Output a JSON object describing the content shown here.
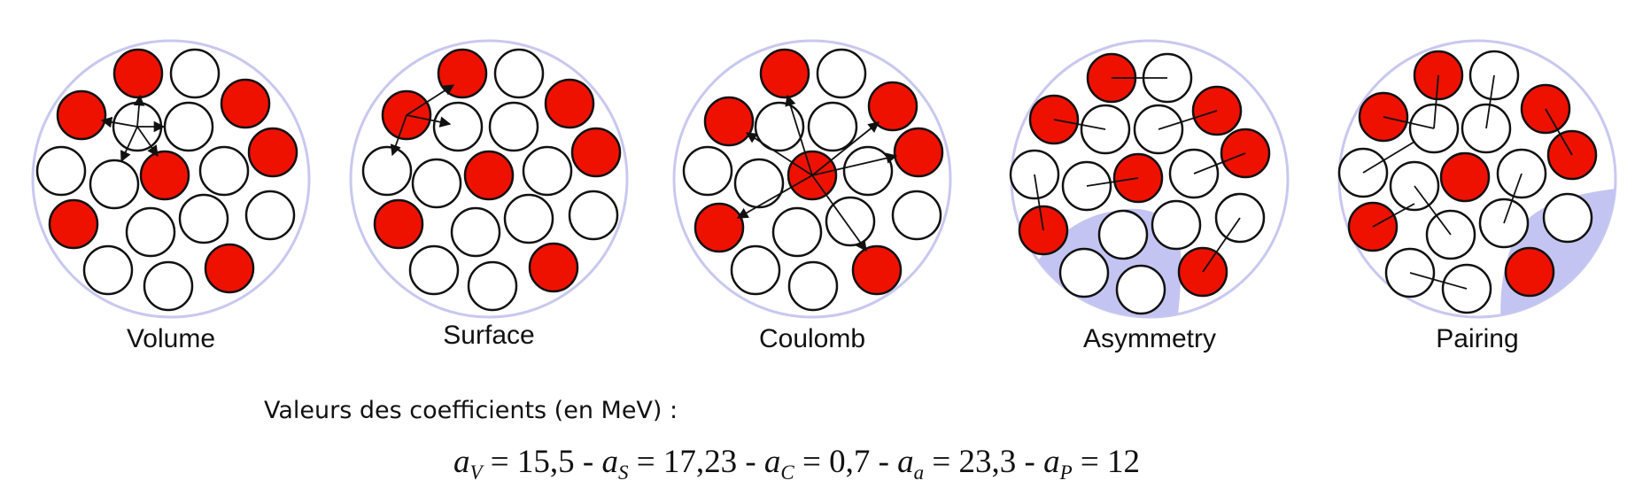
{
  "colors": {
    "proton": "#ee1100",
    "neutron": "#ffffff",
    "outline": "#111111",
    "nucleus_ring": "#c8c8f0",
    "surface_zone": "#c4c4f2"
  },
  "panels": [
    {
      "id": "volume",
      "label": "Volume"
    },
    {
      "id": "surface",
      "label": "Surface"
    },
    {
      "id": "coulomb",
      "label": "Coulomb"
    },
    {
      "id": "asymmetry",
      "label": "Asymmetry"
    },
    {
      "id": "pairing",
      "label": "Pairing"
    }
  ],
  "coefficients": {
    "heading": "Valeurs des coefficients (en MeV) :",
    "symbol": "a",
    "separator": " - ",
    "items": [
      {
        "sub": "V",
        "value": "15,5"
      },
      {
        "sub": "S",
        "value": "17,23"
      },
      {
        "sub": "C",
        "value": "0,7"
      },
      {
        "sub": "a",
        "value": "23,3"
      },
      {
        "sub": "P",
        "value": "12"
      }
    ]
  }
}
